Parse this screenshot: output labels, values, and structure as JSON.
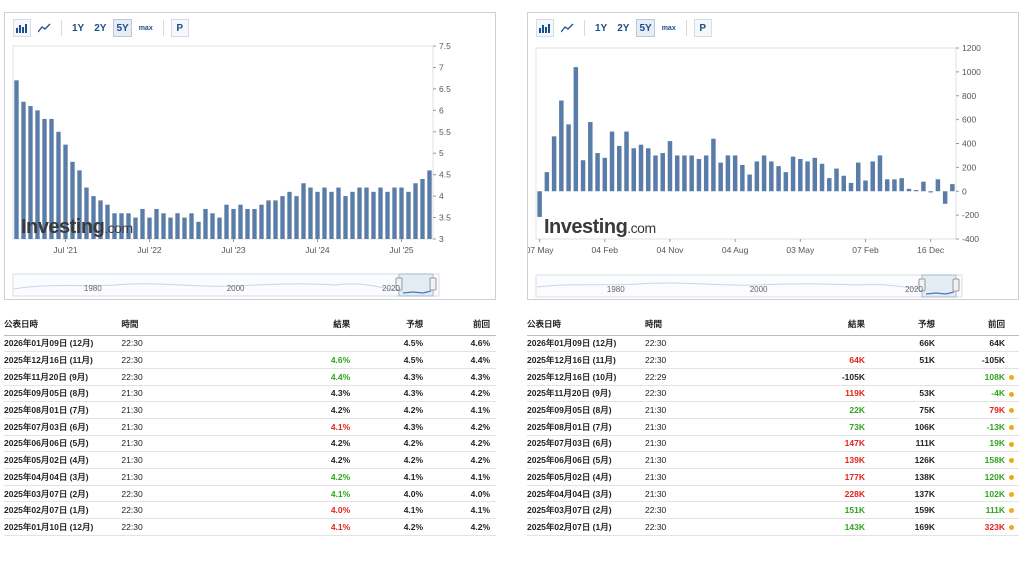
{
  "colors": {
    "bar": "#5a7ca8",
    "positive": "#2fa41f",
    "negative": "#e0231b",
    "dot": "#f0a81f"
  },
  "toolbar": {
    "icons": [
      "bar-chart-icon",
      "line-chart-icon"
    ],
    "ranges": [
      "1Y",
      "2Y",
      "5Y",
      "max"
    ],
    "active_range": "5Y",
    "p_label": "P"
  },
  "watermark": {
    "brand": "Investing",
    "suffix": ".com"
  },
  "chart_data": [
    {
      "type": "bar",
      "title": "",
      "ylim": [
        3,
        7.5
      ],
      "y_ticks": [
        "7.5",
        "7",
        "6.5",
        "6",
        "5.5",
        "5",
        "4.5",
        "4",
        "3.5",
        "3"
      ],
      "x_ticks": [
        "Jul '21",
        "Jul '22",
        "Jul '23",
        "Jul '24",
        "Jul '25"
      ],
      "x_tick_index": [
        7,
        19,
        31,
        43,
        55
      ],
      "navigator_labels": [
        "1980",
        "2000",
        "2020"
      ],
      "values": [
        6.7,
        6.2,
        6.1,
        6.0,
        5.8,
        5.8,
        5.5,
        5.2,
        4.8,
        4.6,
        4.2,
        4.0,
        3.9,
        3.8,
        3.6,
        3.6,
        3.6,
        3.5,
        3.7,
        3.5,
        3.7,
        3.6,
        3.5,
        3.6,
        3.5,
        3.6,
        3.4,
        3.7,
        3.6,
        3.5,
        3.8,
        3.7,
        3.8,
        3.7,
        3.7,
        3.8,
        3.9,
        3.9,
        4.0,
        4.1,
        4.0,
        4.3,
        4.2,
        4.1,
        4.2,
        4.1,
        4.2,
        4.0,
        4.1,
        4.2,
        4.2,
        4.1,
        4.2,
        4.1,
        4.2,
        4.2,
        4.1,
        4.3,
        4.4,
        4.6
      ]
    },
    {
      "type": "bar",
      "title": "",
      "ylim": [
        -400,
        1200
      ],
      "y_ticks": [
        "1200",
        "1000",
        "800",
        "600",
        "400",
        "200",
        "0",
        "-200",
        "-400"
      ],
      "x_ticks": [
        "07 May",
        "04 Feb",
        "04 Nov",
        "04 Aug",
        "03 May",
        "07 Feb",
        "16 Dec"
      ],
      "x_tick_index": [
        0,
        9,
        18,
        27,
        36,
        45,
        54
      ],
      "navigator_labels": [
        "1980",
        "2000",
        "2020"
      ],
      "values": [
        -215,
        160,
        460,
        760,
        560,
        1040,
        260,
        580,
        320,
        280,
        500,
        380,
        500,
        360,
        390,
        360,
        300,
        320,
        420,
        300,
        300,
        300,
        270,
        300,
        440,
        240,
        300,
        300,
        220,
        140,
        250,
        300,
        250,
        210,
        160,
        290,
        270,
        250,
        280,
        230,
        110,
        190,
        130,
        70,
        240,
        90,
        250,
        300,
        100,
        100,
        110,
        20,
        10,
        80,
        -10,
        100,
        -105,
        60
      ]
    }
  ],
  "left_table": {
    "headers": [
      "公表日時",
      "時間",
      "結果",
      "予想",
      "前回"
    ],
    "rows": [
      {
        "date": "2026年01月09日 (12月)",
        "time": "22:30",
        "actual": "",
        "actual_status": "",
        "forecast": "4.5%",
        "previous": "4.6%"
      },
      {
        "date": "2025年12月16日 (11月)",
        "time": "22:30",
        "actual": "4.6%",
        "actual_status": "up",
        "forecast": "4.5%",
        "previous": "4.4%"
      },
      {
        "date": "2025年11月20日 (9月)",
        "time": "22:30",
        "actual": "4.4%",
        "actual_status": "up",
        "forecast": "4.3%",
        "previous": "4.3%"
      },
      {
        "date": "2025年09月05日 (8月)",
        "time": "21:30",
        "actual": "4.3%",
        "actual_status": "",
        "forecast": "4.3%",
        "previous": "4.2%"
      },
      {
        "date": "2025年08月01日 (7月)",
        "time": "21:30",
        "actual": "4.2%",
        "actual_status": "",
        "forecast": "4.2%",
        "previous": "4.1%"
      },
      {
        "date": "2025年07月03日 (6月)",
        "time": "21:30",
        "actual": "4.1%",
        "actual_status": "down",
        "forecast": "4.3%",
        "previous": "4.2%"
      },
      {
        "date": "2025年06月06日 (5月)",
        "time": "21:30",
        "actual": "4.2%",
        "actual_status": "",
        "forecast": "4.2%",
        "previous": "4.2%"
      },
      {
        "date": "2025年05月02日 (4月)",
        "time": "21:30",
        "actual": "4.2%",
        "actual_status": "",
        "forecast": "4.2%",
        "previous": "4.2%"
      },
      {
        "date": "2025年04月04日 (3月)",
        "time": "21:30",
        "actual": "4.2%",
        "actual_status": "up",
        "forecast": "4.1%",
        "previous": "4.1%"
      },
      {
        "date": "2025年03月07日 (2月)",
        "time": "22:30",
        "actual": "4.1%",
        "actual_status": "up",
        "forecast": "4.0%",
        "previous": "4.0%"
      },
      {
        "date": "2025年02月07日 (1月)",
        "time": "22:30",
        "actual": "4.0%",
        "actual_status": "down",
        "forecast": "4.1%",
        "previous": "4.1%"
      },
      {
        "date": "2025年01月10日 (12月)",
        "time": "22:30",
        "actual": "4.1%",
        "actual_status": "down",
        "forecast": "4.2%",
        "previous": "4.2%"
      }
    ]
  },
  "right_table": {
    "headers": [
      "公表日時",
      "時間",
      "結果",
      "予想",
      "前回"
    ],
    "rows": [
      {
        "date": "2026年01月09日 (12月)",
        "time": "22:30",
        "actual": "",
        "actual_status": "",
        "forecast": "66K",
        "previous": "64K",
        "previous_status": "",
        "revised": false
      },
      {
        "date": "2025年12月16日 (11月)",
        "time": "22:30",
        "actual": "64K",
        "actual_status": "down",
        "forecast": "51K",
        "previous": "-105K",
        "previous_status": "",
        "revised": false
      },
      {
        "date": "2025年12月16日 (10月)",
        "time": "22:29",
        "actual": "-105K",
        "actual_status": "",
        "forecast": "",
        "previous": "108K",
        "previous_status": "up",
        "revised": true
      },
      {
        "date": "2025年11月20日 (9月)",
        "time": "22:30",
        "actual": "119K",
        "actual_status": "down",
        "forecast": "53K",
        "previous": "-4K",
        "previous_status": "up",
        "revised": true
      },
      {
        "date": "2025年09月05日 (8月)",
        "time": "21:30",
        "actual": "22K",
        "actual_status": "up",
        "forecast": "75K",
        "previous": "79K",
        "previous_status": "down",
        "revised": true
      },
      {
        "date": "2025年08月01日 (7月)",
        "time": "21:30",
        "actual": "73K",
        "actual_status": "up",
        "forecast": "106K",
        "previous": "-13K",
        "previous_status": "up",
        "revised": true
      },
      {
        "date": "2025年07月03日 (6月)",
        "time": "21:30",
        "actual": "147K",
        "actual_status": "down",
        "forecast": "111K",
        "previous": "19K",
        "previous_status": "up",
        "revised": true
      },
      {
        "date": "2025年06月06日 (5月)",
        "time": "21:30",
        "actual": "139K",
        "actual_status": "down",
        "forecast": "126K",
        "previous": "158K",
        "previous_status": "up",
        "revised": true
      },
      {
        "date": "2025年05月02日 (4月)",
        "time": "21:30",
        "actual": "177K",
        "actual_status": "down",
        "forecast": "138K",
        "previous": "120K",
        "previous_status": "up",
        "revised": true
      },
      {
        "date": "2025年04月04日 (3月)",
        "time": "21:30",
        "actual": "228K",
        "actual_status": "down",
        "forecast": "137K",
        "previous": "102K",
        "previous_status": "up",
        "revised": true
      },
      {
        "date": "2025年03月07日 (2月)",
        "time": "22:30",
        "actual": "151K",
        "actual_status": "up",
        "forecast": "159K",
        "previous": "111K",
        "previous_status": "up",
        "revised": true
      },
      {
        "date": "2025年02月07日 (1月)",
        "time": "22:30",
        "actual": "143K",
        "actual_status": "up",
        "forecast": "169K",
        "previous": "323K",
        "previous_status": "down",
        "revised": true
      }
    ]
  }
}
